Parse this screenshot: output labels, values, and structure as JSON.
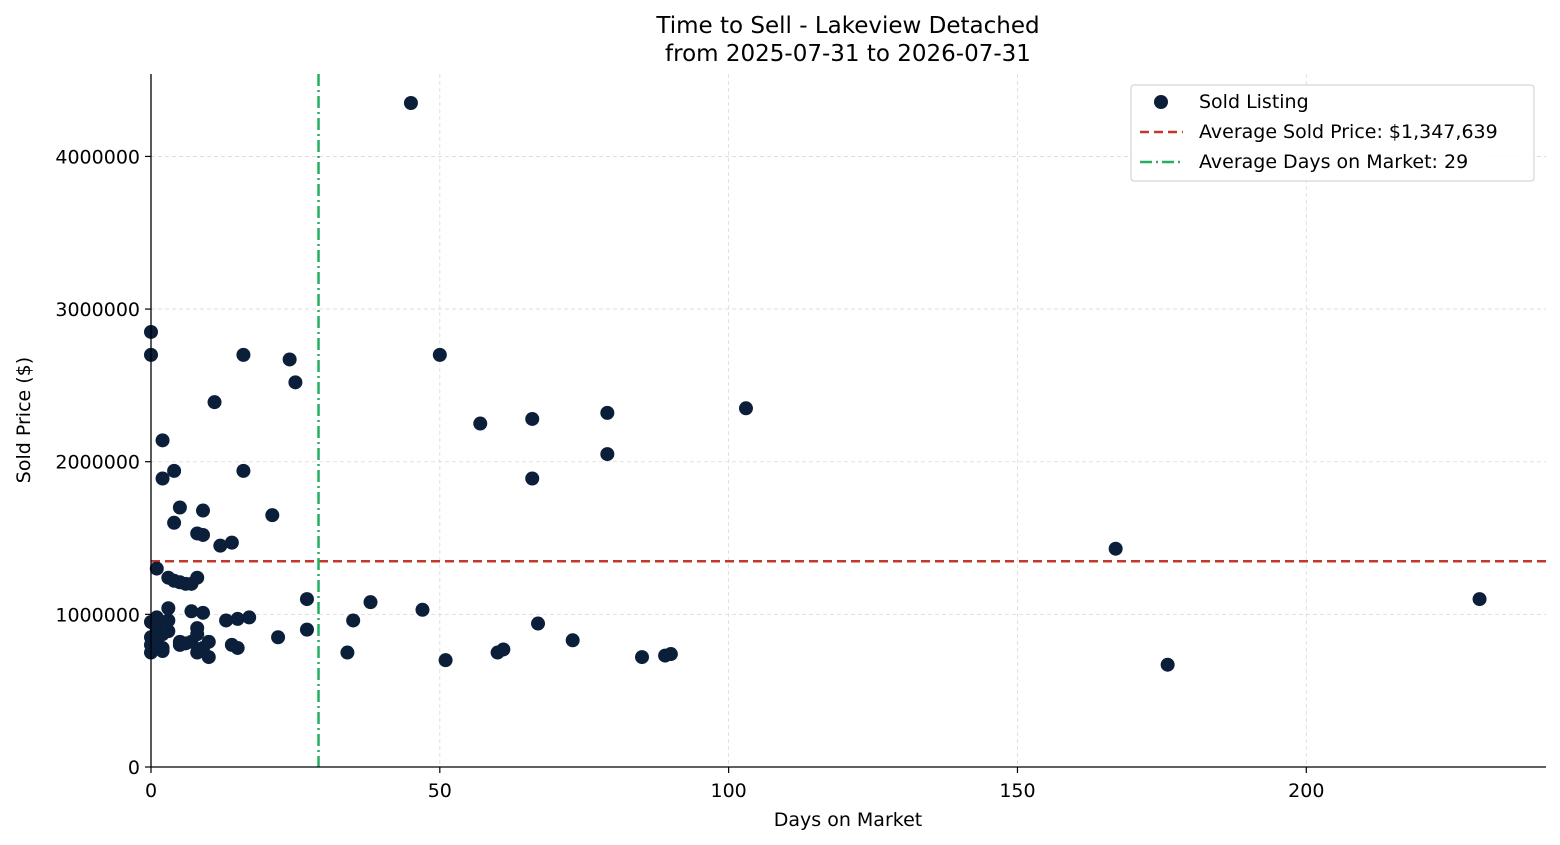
{
  "chart_data": {
    "type": "scatter",
    "title": "Time to Sell - Lakeview Detached",
    "subtitle": "from 2025-07-31 to 2026-07-31",
    "xlabel": "Days on Market",
    "ylabel": "Sold Price ($)",
    "xlim": [
      0,
      241.5
    ],
    "ylim": [
      0,
      4540000
    ],
    "xticks": [
      0,
      50,
      100,
      150,
      200
    ],
    "xtick_labels": [
      "0",
      "50",
      "100",
      "150",
      "200"
    ],
    "yticks": [
      0,
      1000000,
      2000000,
      3000000,
      4000000
    ],
    "ytick_labels": [
      "0",
      "1000000",
      "2000000",
      "3000000",
      "4000000"
    ],
    "grid": true,
    "legend_position": "top-right",
    "colors": {
      "points": "#0b1f3a",
      "avg_price_line": "#c0392b",
      "avg_days_line": "#27ae60",
      "grid": "#d9d9d9"
    },
    "series": [
      {
        "name": "Sold Listing",
        "points": [
          [
            0,
            2850000
          ],
          [
            0,
            2700000
          ],
          [
            0,
            750000
          ],
          [
            0,
            800000
          ],
          [
            0,
            850000
          ],
          [
            0,
            950000
          ],
          [
            1,
            1300000
          ],
          [
            1,
            980000
          ],
          [
            1,
            900000
          ],
          [
            1,
            780000
          ],
          [
            1,
            830000
          ],
          [
            1,
            920000
          ],
          [
            2,
            2140000
          ],
          [
            2,
            1890000
          ],
          [
            2,
            780000
          ],
          [
            2,
            760000
          ],
          [
            2,
            870000
          ],
          [
            3,
            1240000
          ],
          [
            3,
            1040000
          ],
          [
            3,
            960000
          ],
          [
            3,
            890000
          ],
          [
            4,
            1940000
          ],
          [
            4,
            1600000
          ],
          [
            4,
            1220000
          ],
          [
            5,
            1700000
          ],
          [
            5,
            1210000
          ],
          [
            5,
            800000
          ],
          [
            5,
            820000
          ],
          [
            6,
            1200000
          ],
          [
            6,
            810000
          ],
          [
            7,
            1200000
          ],
          [
            7,
            1020000
          ],
          [
            7,
            820000
          ],
          [
            8,
            1530000
          ],
          [
            8,
            1240000
          ],
          [
            8,
            910000
          ],
          [
            8,
            870000
          ],
          [
            8,
            750000
          ],
          [
            9,
            1680000
          ],
          [
            9,
            1520000
          ],
          [
            9,
            1010000
          ],
          [
            9,
            780000
          ],
          [
            10,
            820000
          ],
          [
            10,
            720000
          ],
          [
            11,
            2390000
          ],
          [
            12,
            1450000
          ],
          [
            13,
            960000
          ],
          [
            14,
            1470000
          ],
          [
            14,
            800000
          ],
          [
            15,
            970000
          ],
          [
            15,
            780000
          ],
          [
            16,
            2700000
          ],
          [
            16,
            1940000
          ],
          [
            17,
            980000
          ],
          [
            21,
            1650000
          ],
          [
            22,
            850000
          ],
          [
            24,
            2670000
          ],
          [
            25,
            2520000
          ],
          [
            27,
            1100000
          ],
          [
            27,
            900000
          ],
          [
            34,
            750000
          ],
          [
            35,
            960000
          ],
          [
            38,
            1080000
          ],
          [
            45,
            4350000
          ],
          [
            47,
            1030000
          ],
          [
            50,
            2700000
          ],
          [
            51,
            700000
          ],
          [
            57,
            2250000
          ],
          [
            60,
            750000
          ],
          [
            61,
            770000
          ],
          [
            66,
            2280000
          ],
          [
            66,
            1890000
          ],
          [
            67,
            940000
          ],
          [
            73,
            830000
          ],
          [
            79,
            2320000
          ],
          [
            79,
            2050000
          ],
          [
            85,
            720000
          ],
          [
            89,
            730000
          ],
          [
            90,
            740000
          ],
          [
            103,
            2350000
          ],
          [
            167,
            1430000
          ],
          [
            176,
            670000
          ],
          [
            230,
            1100000
          ]
        ]
      }
    ],
    "reference_lines": {
      "avg_price": {
        "value": 1347639,
        "label": "Average Sold Price: $1,347,639"
      },
      "avg_days": {
        "value": 29,
        "label": "Average Days on Market: 29"
      }
    }
  }
}
